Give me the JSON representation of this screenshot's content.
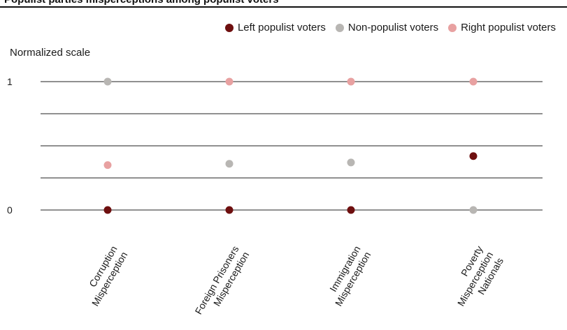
{
  "chart_data": {
    "type": "scatter",
    "title": "Populist parties misperceptions among populist voters",
    "ylabel": "Normalized scale",
    "ylim": [
      0,
      1
    ],
    "yticks": [
      {
        "value": 0,
        "label": "0"
      },
      {
        "value": 1,
        "label": "1"
      }
    ],
    "grid": true,
    "legend_position": "top-right",
    "categories": [
      [
        "Corruption",
        "Misperception"
      ],
      [
        "Foreign Prisoners",
        "Misperception"
      ],
      [
        "Immigration",
        "Misperception"
      ],
      [
        "Poverty",
        "Misperception",
        "Nationals"
      ]
    ],
    "series": [
      {
        "name": "Left populist voters",
        "color": "#6e0f0f",
        "values": [
          0,
          0,
          0,
          0.42
        ]
      },
      {
        "name": "Non-populist voters",
        "color": "#b8b6b3",
        "values": [
          1,
          0.36,
          0.37,
          0
        ]
      },
      {
        "name": "Right populist voters",
        "color": "#e8a1a1",
        "values": [
          0.35,
          1,
          1,
          1
        ]
      }
    ]
  }
}
